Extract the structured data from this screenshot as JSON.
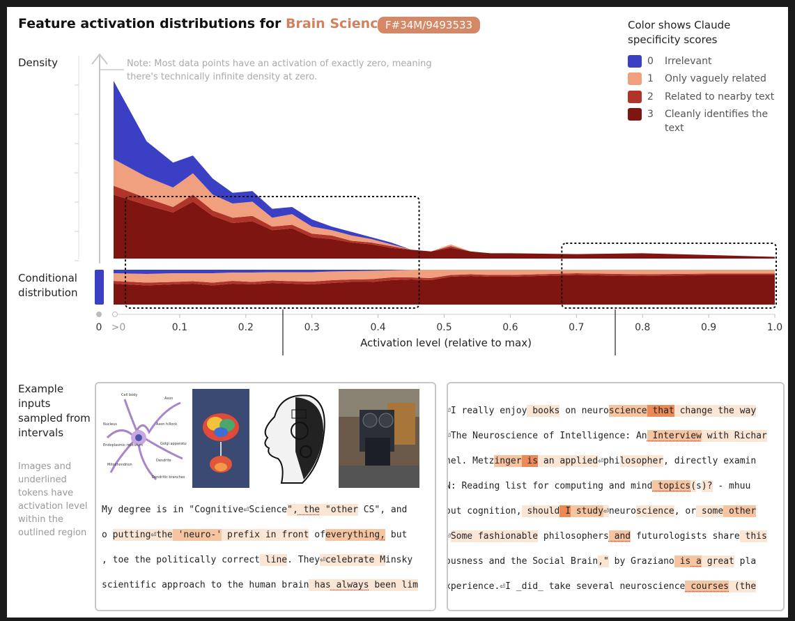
{
  "header": {
    "title_prefix": "Feature activation distributions for ",
    "title_topic": "Brain Sciences",
    "feature_id": "F#34M/9493533"
  },
  "legend": {
    "title": "Color shows Claude specificity scores",
    "items": [
      {
        "score": "0",
        "label": "Irrelevant",
        "color": "#3b3fc4"
      },
      {
        "score": "1",
        "label": "Only vaguely related",
        "color": "#f0a07f"
      },
      {
        "score": "2",
        "label": "Related to nearby text",
        "color": "#b0342a"
      },
      {
        "score": "3",
        "label": "Cleanly identifies the text",
        "color": "#7e1510"
      }
    ]
  },
  "labels": {
    "density": "Density",
    "conditional": "Conditional distribution",
    "examples": "Example inputs sampled from intervals",
    "examples_note": "Images and underlined tokens have activation level within the outlined region",
    "note": "Note: Most data points have an activation of exactly zero, meaning there's technically infinite density at zero."
  },
  "chart_data": {
    "type": "area",
    "stacked": true,
    "xlabel": "Activation level (relative to max)",
    "ylabel": "Density",
    "xlim": [
      0,
      1.0
    ],
    "ylim": [
      0,
      1.0
    ],
    "x_tick_labels": [
      "0",
      ">0",
      "0.1",
      "0.2",
      "0.3",
      "0.4",
      "0.5",
      "0.6",
      "0.7",
      "0.8",
      "0.9",
      "1.0"
    ],
    "x": [
      0.0,
      0.05,
      0.09,
      0.12,
      0.15,
      0.18,
      0.21,
      0.24,
      0.27,
      0.3,
      0.33,
      0.36,
      0.39,
      0.42,
      0.45,
      0.48,
      0.51,
      0.54,
      0.57,
      0.6,
      0.7,
      0.8,
      0.9,
      1.0
    ],
    "series": [
      {
        "name": "3",
        "values": [
          0.36,
          0.3,
          0.26,
          0.32,
          0.24,
          0.2,
          0.21,
          0.16,
          0.17,
          0.12,
          0.11,
          0.09,
          0.08,
          0.06,
          0.05,
          0.04,
          0.06,
          0.04,
          0.03,
          0.03,
          0.025,
          0.03,
          0.02,
          0.01
        ]
      },
      {
        "name": "2",
        "values": [
          0.05,
          0.04,
          0.03,
          0.04,
          0.03,
          0.03,
          0.03,
          0.02,
          0.02,
          0.02,
          0.02,
          0.01,
          0.01,
          0.01,
          0.0,
          0.0,
          0.01,
          0.0,
          0.0,
          0.0,
          0.0,
          0.0,
          0.0,
          0.0
        ]
      },
      {
        "name": "1",
        "values": [
          0.15,
          0.12,
          0.11,
          0.12,
          0.09,
          0.08,
          0.08,
          0.05,
          0.06,
          0.04,
          0.03,
          0.03,
          0.02,
          0.01,
          0.0,
          0.0,
          0.01,
          0.0,
          0.0,
          0.0,
          0.0,
          0.0,
          0.0,
          0.0
        ]
      },
      {
        "name": "0",
        "values": [
          0.44,
          0.2,
          0.14,
          0.1,
          0.09,
          0.06,
          0.06,
          0.05,
          0.04,
          0.04,
          0.02,
          0.02,
          0.01,
          0.01,
          0.0,
          0.0,
          0.0,
          0.0,
          0.0,
          0.0,
          0.0,
          0.0,
          0.0,
          0.0
        ]
      }
    ],
    "conditional": {
      "x": [
        0.0,
        0.05,
        0.09,
        0.12,
        0.15,
        0.18,
        0.21,
        0.24,
        0.27,
        0.3,
        0.33,
        0.36,
        0.39,
        0.42,
        0.45,
        0.48,
        0.51,
        0.54,
        0.57,
        0.6,
        0.7,
        0.8,
        0.9,
        1.0
      ],
      "series": [
        {
          "name": "3",
          "values": [
            0.6,
            0.55,
            0.58,
            0.6,
            0.55,
            0.6,
            0.58,
            0.62,
            0.6,
            0.58,
            0.62,
            0.65,
            0.65,
            0.7,
            0.72,
            0.7,
            0.8,
            0.82,
            0.8,
            0.8,
            0.85,
            0.82,
            0.85,
            0.85
          ]
        },
        {
          "name": "2",
          "values": [
            0.08,
            0.08,
            0.07,
            0.07,
            0.08,
            0.08,
            0.07,
            0.07,
            0.07,
            0.08,
            0.08,
            0.07,
            0.08,
            0.08,
            0.06,
            0.06,
            0.05,
            0.05,
            0.05,
            0.05,
            0.05,
            0.05,
            0.04,
            0.04
          ]
        },
        {
          "name": "1",
          "values": [
            0.22,
            0.25,
            0.25,
            0.23,
            0.27,
            0.24,
            0.27,
            0.24,
            0.26,
            0.27,
            0.25,
            0.24,
            0.24,
            0.2,
            0.22,
            0.24,
            0.15,
            0.13,
            0.15,
            0.15,
            0.1,
            0.13,
            0.11,
            0.11
          ]
        },
        {
          "name": "0",
          "values": [
            0.1,
            0.12,
            0.1,
            0.1,
            0.1,
            0.08,
            0.08,
            0.07,
            0.07,
            0.07,
            0.05,
            0.04,
            0.03,
            0.02,
            0.0,
            0.0,
            0.0,
            0.0,
            0.0,
            0.0,
            0.0,
            0.0,
            0.0,
            0.0
          ]
        }
      ]
    },
    "highlight_intervals": [
      [
        0.02,
        0.46
      ],
      [
        0.68,
        1.0
      ]
    ]
  },
  "examples_left": {
    "images": [
      "neuron-diagram",
      "brain-poster",
      "mechanical-head-sketch",
      "robot-photo"
    ],
    "neuron_labels": [
      "Cell body",
      "Axon",
      "Nucleus",
      "Axon hillock",
      "Golgi apparatus",
      "Endoplasmic reticulum",
      "Dendrite",
      "Mitochondrion",
      "Dendritic branches"
    ],
    "lines": [
      [
        [
          "My degree is in \"",
          "0"
        ],
        [
          "C",
          "0"
        ],
        [
          "ognitive",
          "0"
        ],
        [
          "⏎",
          "0"
        ],
        [
          "Science",
          "0"
        ],
        [
          "\",",
          "1"
        ],
        [
          " the",
          "1u"
        ],
        [
          " \"",
          "1"
        ],
        [
          "other",
          "1"
        ],
        [
          " CS\", and",
          "0"
        ]
      ],
      [
        [
          "o ",
          "0"
        ],
        [
          "putting",
          "1"
        ],
        [
          "⏎",
          "1"
        ],
        [
          "the",
          "1"
        ],
        [
          " 'neuro-'",
          "2"
        ],
        [
          " prefix",
          "1"
        ],
        [
          " in",
          "1"
        ],
        [
          " front",
          "1"
        ],
        [
          " of",
          "0"
        ],
        [
          "everything",
          "2"
        ],
        [
          ",",
          "2u"
        ],
        [
          " but",
          "0"
        ]
      ],
      [
        [
          ", toe the politically correct",
          "0"
        ],
        [
          " line",
          "1"
        ],
        [
          ". They",
          "0"
        ],
        [
          "⏎",
          "1"
        ],
        [
          "cele",
          "1"
        ],
        [
          "b",
          "1"
        ],
        [
          "rate",
          "1"
        ],
        [
          " M",
          "1"
        ],
        [
          "insky",
          "0"
        ]
      ],
      [
        [
          "scientific approach to the human brain",
          "0"
        ],
        [
          " has",
          "1"
        ],
        [
          " always",
          "1u"
        ],
        [
          " been",
          "1"
        ],
        [
          " lim",
          "1"
        ]
      ]
    ]
  },
  "examples_right": {
    "lines": [
      [
        [
          "⏎I really enjoy",
          "0"
        ],
        [
          " books",
          "1"
        ],
        [
          " on neuro",
          "0"
        ],
        [
          "science",
          "2"
        ],
        [
          " that",
          "3"
        ],
        [
          " change",
          "1"
        ],
        [
          " the",
          "1"
        ],
        [
          " way",
          "1"
        ]
      ],
      [
        [
          "⏎The Neuro",
          "0"
        ],
        [
          "science",
          "0"
        ],
        [
          " of Intelligence: An",
          "0"
        ],
        [
          " Interview",
          "2u"
        ],
        [
          " with",
          "1"
        ],
        [
          " Richar",
          "1"
        ]
      ],
      [
        [
          "hel. Metz",
          "0"
        ],
        [
          "inger",
          "2"
        ],
        [
          " is",
          "3"
        ],
        [
          " an",
          "1"
        ],
        [
          " applied",
          "1"
        ],
        [
          "⏎",
          "0"
        ],
        [
          "phi",
          "0"
        ],
        [
          "losopher",
          "1"
        ],
        [
          ", directly examin",
          "0"
        ]
      ],
      [
        [
          "N: Reading list for computing and mind",
          "0"
        ],
        [
          " topics",
          "2u"
        ],
        [
          "(",
          "1"
        ],
        [
          "s",
          "0"
        ],
        [
          ")?",
          "1"
        ],
        [
          " - mhuu",
          "0"
        ]
      ],
      [
        [
          "out cognition,",
          "0"
        ],
        [
          " should",
          "1"
        ],
        [
          " I",
          "3"
        ],
        [
          " study",
          "2"
        ],
        [
          "⏎",
          "1"
        ],
        [
          "neuro",
          "0"
        ],
        [
          "science",
          "1"
        ],
        [
          ", or",
          "0"
        ],
        [
          " some",
          "1"
        ],
        [
          " other",
          "2"
        ]
      ],
      [
        [
          "⏎",
          "0"
        ],
        [
          "Some",
          "1"
        ],
        [
          " fashion",
          "1"
        ],
        [
          "able",
          "1"
        ],
        [
          " philosophers",
          "0"
        ],
        [
          " and",
          "2u"
        ],
        [
          " futuro",
          "0"
        ],
        [
          "logists share",
          "0"
        ],
        [
          " this",
          "1"
        ]
      ],
      [
        [
          "ousness and the Social Brain",
          "0"
        ],
        [
          ",\"",
          "1"
        ],
        [
          " by Gra",
          "0"
        ],
        [
          "ziano",
          "0"
        ],
        [
          " is",
          "2"
        ],
        [
          " a",
          "2u"
        ],
        [
          " great",
          "1"
        ],
        [
          " pla",
          "0"
        ]
      ],
      [
        [
          "xperience.⏎I _did_ take several neuro",
          "0"
        ],
        [
          "science",
          "0"
        ],
        [
          " courses",
          "2u"
        ],
        [
          " (the",
          "1"
        ]
      ]
    ]
  }
}
